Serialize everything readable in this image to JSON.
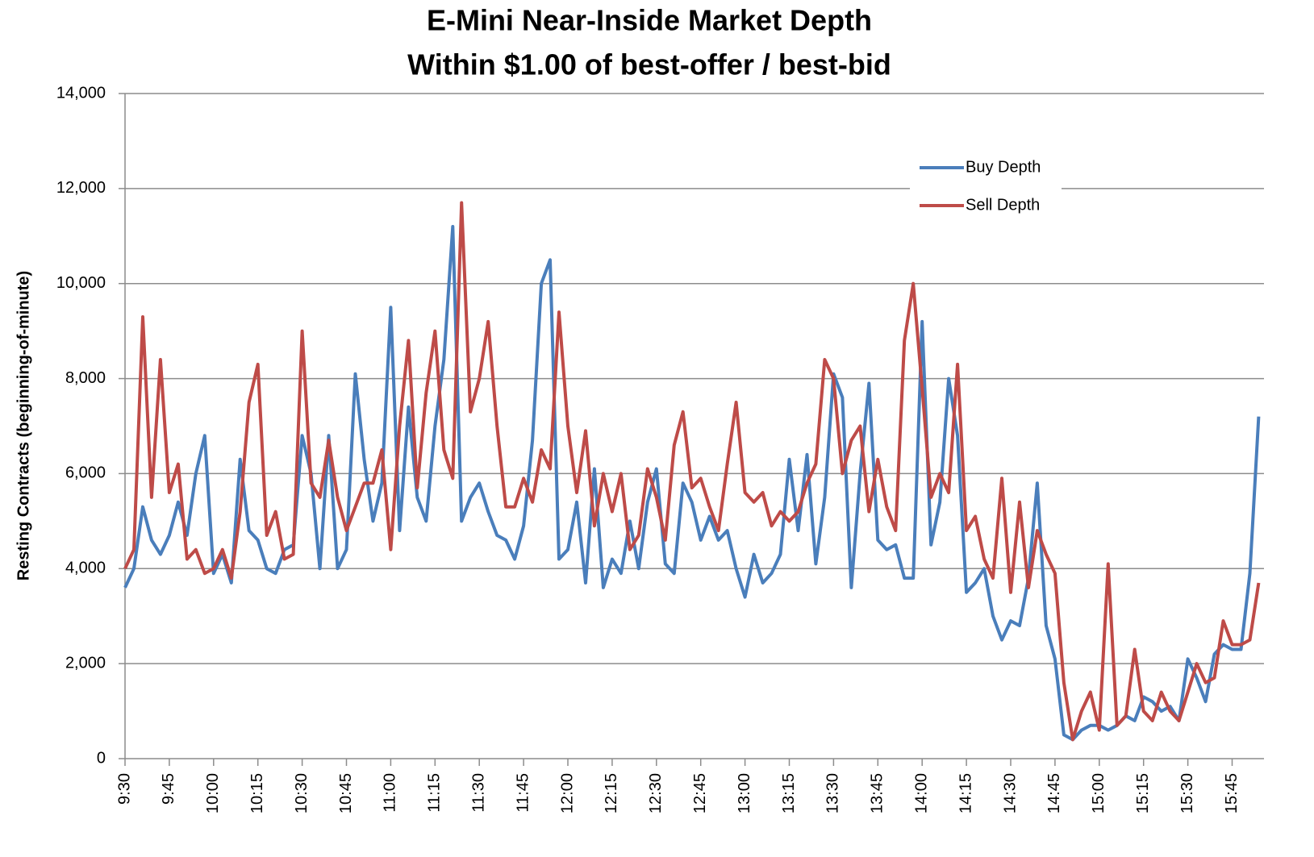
{
  "chart_data": {
    "type": "line",
    "title": "E-Mini Near-Inside Market Depth",
    "subtitle": "Within $1.00 of best-offer / best-bid",
    "y_label": "Resting Contracts (beginning-of-minute)",
    "categories": [
      "9:30",
      null,
      null,
      null,
      null,
      "9:45",
      null,
      null,
      null,
      null,
      "10:00",
      null,
      null,
      null,
      null,
      "10:15",
      null,
      null,
      null,
      null,
      "10:30",
      null,
      null,
      null,
      null,
      "10:45",
      null,
      null,
      null,
      null,
      "11:00",
      null,
      null,
      null,
      null,
      "11:15",
      null,
      null,
      null,
      null,
      "11:30",
      null,
      null,
      null,
      null,
      "11:45",
      null,
      null,
      null,
      null,
      "12:00",
      null,
      null,
      null,
      null,
      "12:15",
      null,
      null,
      null,
      null,
      "12:30",
      null,
      null,
      null,
      null,
      "12:45",
      null,
      null,
      null,
      null,
      "13:00",
      null,
      null,
      null,
      null,
      "13:15",
      null,
      null,
      null,
      null,
      "13:30",
      null,
      null,
      null,
      null,
      "13:45",
      null,
      null,
      null,
      null,
      "14:00",
      null,
      null,
      null,
      null,
      "14:15",
      null,
      null,
      null,
      null,
      "14:30",
      null,
      null,
      null,
      null,
      "14:45",
      null,
      null,
      null,
      null,
      "15:00",
      null,
      null,
      null,
      null,
      "15:15",
      null,
      null,
      null,
      null,
      "15:30",
      null,
      null,
      null,
      null,
      "15:45",
      null,
      null,
      null
    ],
    "series": [
      {
        "name": "Buy Depth",
        "color": "#4a7ebb",
        "values": [
          3600,
          4000,
          5300,
          4600,
          4300,
          4700,
          5400,
          4700,
          6000,
          6800,
          3900,
          4300,
          3700,
          6300,
          4800,
          4600,
          4000,
          3900,
          4400,
          4500,
          6800,
          6000,
          4000,
          6800,
          4000,
          4400,
          8100,
          6300,
          5000,
          5800,
          9500,
          4800,
          7400,
          5500,
          5000,
          7000,
          8400,
          11200,
          5000,
          5500,
          5800,
          5200,
          4700,
          4600,
          4200,
          4900,
          6700,
          10000,
          10500,
          4200,
          4400,
          5400,
          3700,
          6100,
          3600,
          4200,
          3900,
          5000,
          4000,
          5400,
          6100,
          4100,
          3900,
          5800,
          5400,
          4600,
          5100,
          4600,
          4800,
          4000,
          3400,
          4300,
          3700,
          3900,
          4300,
          6300,
          4800,
          6400,
          4100,
          5500,
          8100,
          7600,
          3600,
          6000,
          7900,
          4600,
          4400,
          4500,
          3800,
          3800,
          9200,
          4500,
          5400,
          8000,
          6800,
          3500,
          3700,
          4000,
          3000,
          2500,
          2900,
          2800,
          3800,
          5800,
          2800,
          2100,
          500,
          400,
          600,
          700,
          700,
          600,
          700,
          900,
          800,
          1300,
          1200,
          1000,
          1100,
          800,
          2100,
          1700,
          1200,
          2200,
          2400,
          2300,
          2300,
          3900,
          7200
        ]
      },
      {
        "name": "Sell Depth",
        "color": "#be4b48",
        "values": [
          4000,
          4400,
          9300,
          5500,
          8400,
          5600,
          6200,
          4200,
          4400,
          3900,
          4000,
          4400,
          3800,
          5200,
          7500,
          8300,
          4700,
          5200,
          4200,
          4300,
          9000,
          5800,
          5500,
          6700,
          5500,
          4800,
          5300,
          5800,
          5800,
          6500,
          4400,
          7000,
          8800,
          5700,
          7700,
          9000,
          6500,
          5900,
          11700,
          7300,
          8000,
          9200,
          7000,
          5300,
          5300,
          5900,
          5400,
          6500,
          6100,
          9400,
          7000,
          5600,
          6900,
          4900,
          6000,
          5200,
          6000,
          4400,
          4700,
          6100,
          5500,
          4600,
          6600,
          7300,
          5700,
          5900,
          5300,
          4800,
          6200,
          7500,
          5600,
          5400,
          5600,
          4900,
          5200,
          5000,
          5200,
          5800,
          6200,
          8400,
          8000,
          6000,
          6700,
          7000,
          5200,
          6300,
          5300,
          4800,
          8800,
          10000,
          7800,
          5500,
          6000,
          5600,
          8300,
          4800,
          5100,
          4200,
          3800,
          5900,
          3500,
          5400,
          3600,
          4800,
          4300,
          3900,
          1600,
          400,
          1000,
          1400,
          600,
          4100,
          700,
          900,
          2300,
          1000,
          800,
          1400,
          1000,
          800,
          1400,
          2000,
          1600,
          1700,
          2900,
          2400,
          2400,
          2500,
          3700
        ]
      }
    ],
    "ylim": [
      0,
      14000
    ],
    "yticks": [
      0,
      {
        "value": 2000,
        "label": "2,000"
      },
      {
        "value": 4000,
        "label": "4,000"
      },
      {
        "value": 6000,
        "label": "6,000"
      },
      {
        "value": 8000,
        "label": "8,000"
      },
      {
        "value": 10000,
        "label": "10,000"
      },
      {
        "value": 12000,
        "label": "12,000"
      },
      {
        "value": 14000,
        "label": "14,000"
      }
    ],
    "grid": true,
    "legend": "upper right"
  }
}
